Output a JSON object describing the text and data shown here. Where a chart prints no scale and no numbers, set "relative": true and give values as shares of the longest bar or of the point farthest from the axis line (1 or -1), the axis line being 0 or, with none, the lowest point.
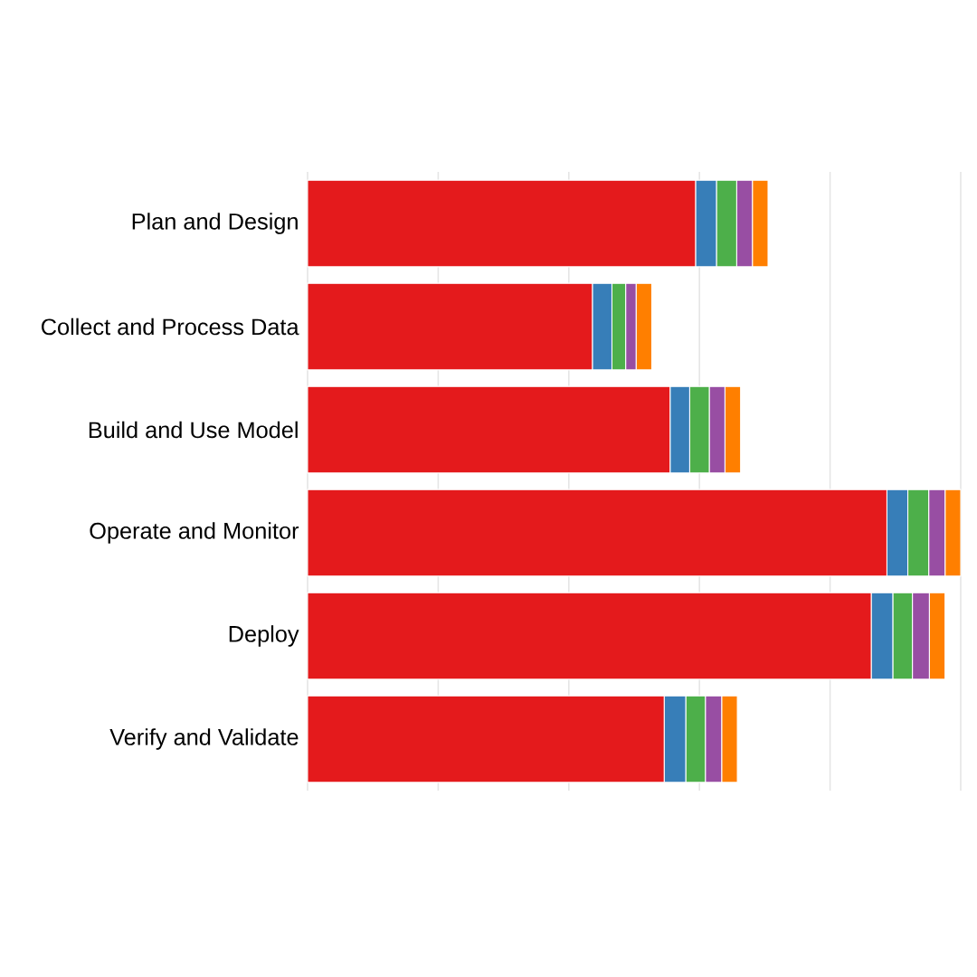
{
  "chart_data": {
    "type": "bar",
    "orientation": "horizontal",
    "stacked": true,
    "relative": true,
    "grid": "x",
    "tick_labels": "y",
    "categories": [
      "Plan and Design",
      "Collect and Process Data",
      "Build and Use Model",
      "Operate and Monitor",
      "Deploy",
      "Verify and Validate"
    ],
    "series": [
      {
        "color": "#e41a1c",
        "values": [
          0.594,
          0.436,
          0.555,
          0.887,
          0.863,
          0.546
        ]
      },
      {
        "color": "#377eb8",
        "values": [
          0.032,
          0.03,
          0.03,
          0.032,
          0.033,
          0.033
        ]
      },
      {
        "color": "#4daf4a",
        "values": [
          0.031,
          0.021,
          0.03,
          0.032,
          0.03,
          0.03
        ]
      },
      {
        "color": "#984ea3",
        "values": [
          0.024,
          0.016,
          0.024,
          0.025,
          0.026,
          0.025
        ]
      },
      {
        "color": "#ff7f00",
        "values": [
          0.024,
          0.024,
          0.024,
          0.024,
          0.024,
          0.024
        ]
      }
    ]
  }
}
